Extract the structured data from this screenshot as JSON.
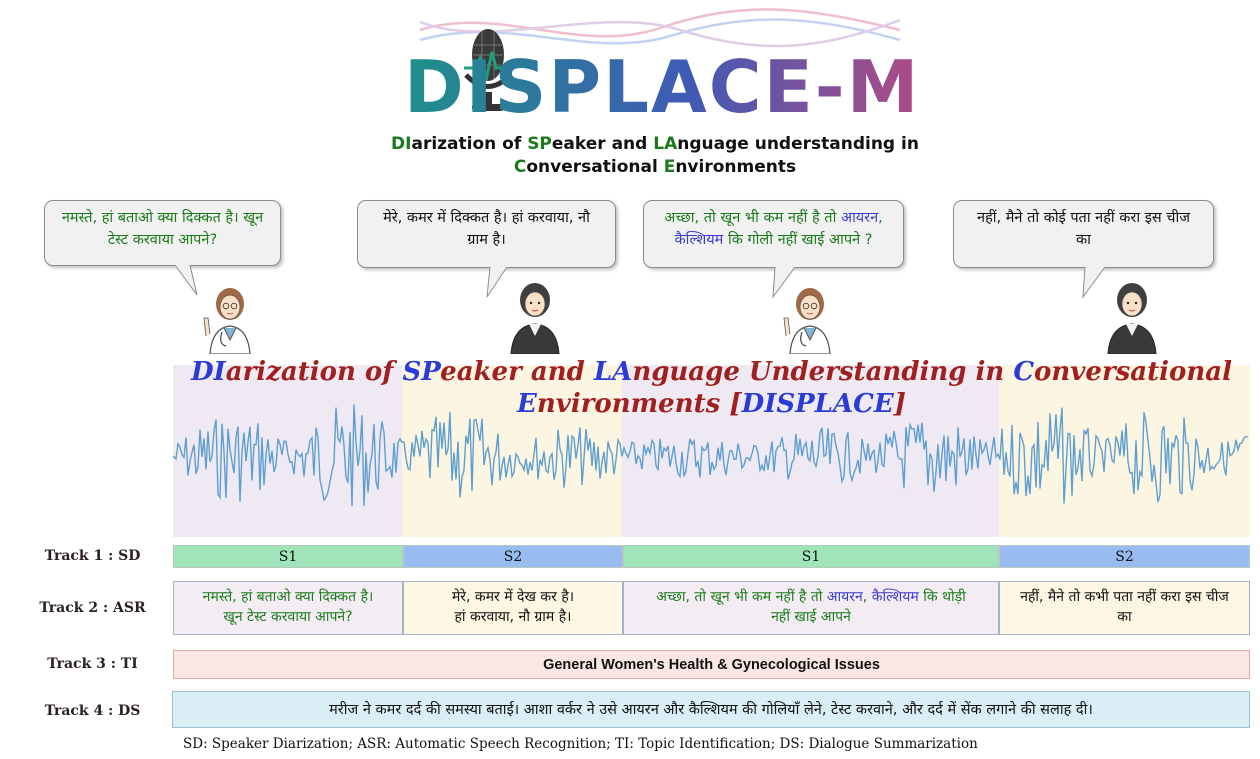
{
  "logo": {
    "text": "DISPLACE-M"
  },
  "subtitle": {
    "line1": [
      {
        "t": "DI",
        "g": true
      },
      {
        "t": "arization of ",
        "g": false
      },
      {
        "t": "SP",
        "g": true
      },
      {
        "t": "eaker and ",
        "g": false
      },
      {
        "t": "LA",
        "g": true
      },
      {
        "t": "nguage understanding in",
        "g": false
      }
    ],
    "line2": [
      {
        "t": "C",
        "g": true
      },
      {
        "t": "onversational ",
        "g": false
      },
      {
        "t": "E",
        "g": true
      },
      {
        "t": "nvironments",
        "g": false
      }
    ]
  },
  "bubbles": [
    {
      "line1": [
        {
          "t": "नमस्ते, हां बताओ क्या दिक्कत है। खून",
          "c": "#1b7a1b"
        }
      ],
      "line2": [
        {
          "t": "टेस्ट करवाया आपने?",
          "c": "#1b7a1b"
        }
      ]
    },
    {
      "line1": [
        {
          "t": "मेरे, कमर में दिक्कत है। हां करवाया, नौ",
          "c": "#111111"
        }
      ],
      "line2": [
        {
          "t": "ग्राम है।",
          "c": "#111111"
        }
      ]
    },
    {
      "line1": [
        {
          "t": "अच्छा, तो खून भी कम नहीं है तो ",
          "c": "#1b7a1b"
        },
        {
          "t": "आयरन",
          "c": "#3b3bd0"
        },
        {
          "t": ",",
          "c": "#1b7a1b"
        }
      ],
      "line2": [
        {
          "t": "कैल्शियम",
          "c": "#3b3bd0"
        },
        {
          "t": " कि गोली नहीं खाई आपने ?",
          "c": "#1b7a1b"
        }
      ]
    },
    {
      "line1": [
        {
          "t": "नहीं, मैने तो कोई पता नहीं करा इस चीज",
          "c": "#111111"
        }
      ],
      "line2": [
        {
          "t": "का",
          "c": "#111111"
        }
      ]
    }
  ],
  "wave_title": {
    "line1": [
      {
        "t": "DI",
        "b": true
      },
      {
        "t": "arization of ",
        "b": false
      },
      {
        "t": "SP",
        "b": true
      },
      {
        "t": "eaker and ",
        "b": false
      },
      {
        "t": "LA",
        "b": true
      },
      {
        "t": "nguage Understanding in ",
        "b": false
      },
      {
        "t": "C",
        "b": true
      },
      {
        "t": "onversational",
        "b": false
      }
    ],
    "line2": [
      {
        "t": "E",
        "b": true
      },
      {
        "t": "nvironments [",
        "b": false
      },
      {
        "t": "DISPLACE",
        "b": true
      },
      {
        "t": "]",
        "b": false
      }
    ]
  },
  "tracks": {
    "track1": {
      "label": "Track 1 : SD",
      "cells": [
        "S1",
        "S2",
        "S1",
        "S2"
      ]
    },
    "track2": {
      "label": "Track 2 : ASR",
      "cells": [
        {
          "line1": [
            {
              "t": "नमस्ते, हां बताओ क्या दिक्कत है।",
              "c": "#1b7a1b"
            }
          ],
          "line2": [
            {
              "t": "खून टेस्ट करवाया आपने?",
              "c": "#1b7a1b"
            }
          ]
        },
        {
          "line1": [
            {
              "t": "मेरे, कमर में देख कर है।",
              "c": "#111111"
            }
          ],
          "line2": [
            {
              "t": "हां करवाया, नौ ग्राम है।",
              "c": "#111111"
            }
          ]
        },
        {
          "line1": [
            {
              "t": "अच्छा, तो खून भी कम नहीं है तो ",
              "c": "#1b7a1b"
            },
            {
              "t": "आयरन",
              "c": "#3b3bd0"
            },
            {
              "t": ", ",
              "c": "#1b7a1b"
            },
            {
              "t": "कैल्शियम",
              "c": "#3b3bd0"
            },
            {
              "t": " कि थोड़ी",
              "c": "#1b7a1b"
            }
          ],
          "line2": [
            {
              "t": "नहीं खाई आपने",
              "c": "#1b7a1b"
            }
          ]
        },
        {
          "line1": [
            {
              "t": "नहीं, मैने तो कभी पता नहीं करा इस चीज",
              "c": "#111111"
            }
          ],
          "line2": [
            {
              "t": "का",
              "c": "#111111"
            }
          ]
        }
      ]
    },
    "track3": {
      "label": "Track 3 : TI",
      "text": "General Women's Health & Gynecological Issues"
    },
    "track4": {
      "label": "Track 4 : DS",
      "text": "मरीज ने कमर दर्द की समस्या बताई। आशा वर्कर ने उसे आयरन और कैल्शियम की गोलियाँ लेने, टेस्ट करवाने, और दर्द में सेंक लगाने की सलाह दी।"
    }
  },
  "footer": "SD: Speaker Diarization; ASR: Automatic Speech Recognition; TI: Topic Identification; DS: Dialogue Summarization",
  "colors": {
    "s1": "#9fe5b9",
    "s2": "#98bcef",
    "asr_s1": "#f3edf3",
    "asr_s2": "#fdf6e3",
    "ti_bg": "#fbe6e3",
    "ds_bg": "#daeef5",
    "wave_s1": "#eee9f2",
    "wave_s2": "#fcf5e2",
    "wave_line": "#5f9fcf"
  }
}
